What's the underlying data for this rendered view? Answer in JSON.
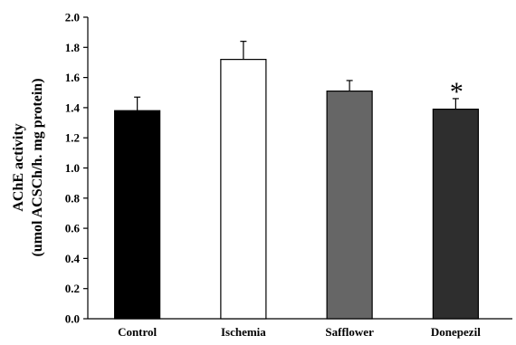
{
  "chart_data": {
    "type": "bar",
    "categories": [
      "Control",
      "Ischemia",
      "Safflower",
      "Donepezil"
    ],
    "values": [
      1.38,
      1.72,
      1.51,
      1.39
    ],
    "errors": [
      0.09,
      0.12,
      0.07,
      0.07
    ],
    "colors": [
      "#000000",
      "#ffffff",
      "#666666",
      "#2e2e2e"
    ],
    "title": "",
    "xlabel": "",
    "ylabel_line1": "AChE activity",
    "ylabel_line2": "(umol ACSCh/h. mg protein)",
    "ylim": [
      0,
      2.0
    ],
    "yticks": [
      "0.0",
      "0.2",
      "0.4",
      "0.6",
      "0.8",
      "1.0",
      "1.2",
      "1.4",
      "1.6",
      "1.8",
      "2.0"
    ],
    "annotations": [
      {
        "category": "Donepezil",
        "text": "*"
      }
    ],
    "grid": false
  }
}
